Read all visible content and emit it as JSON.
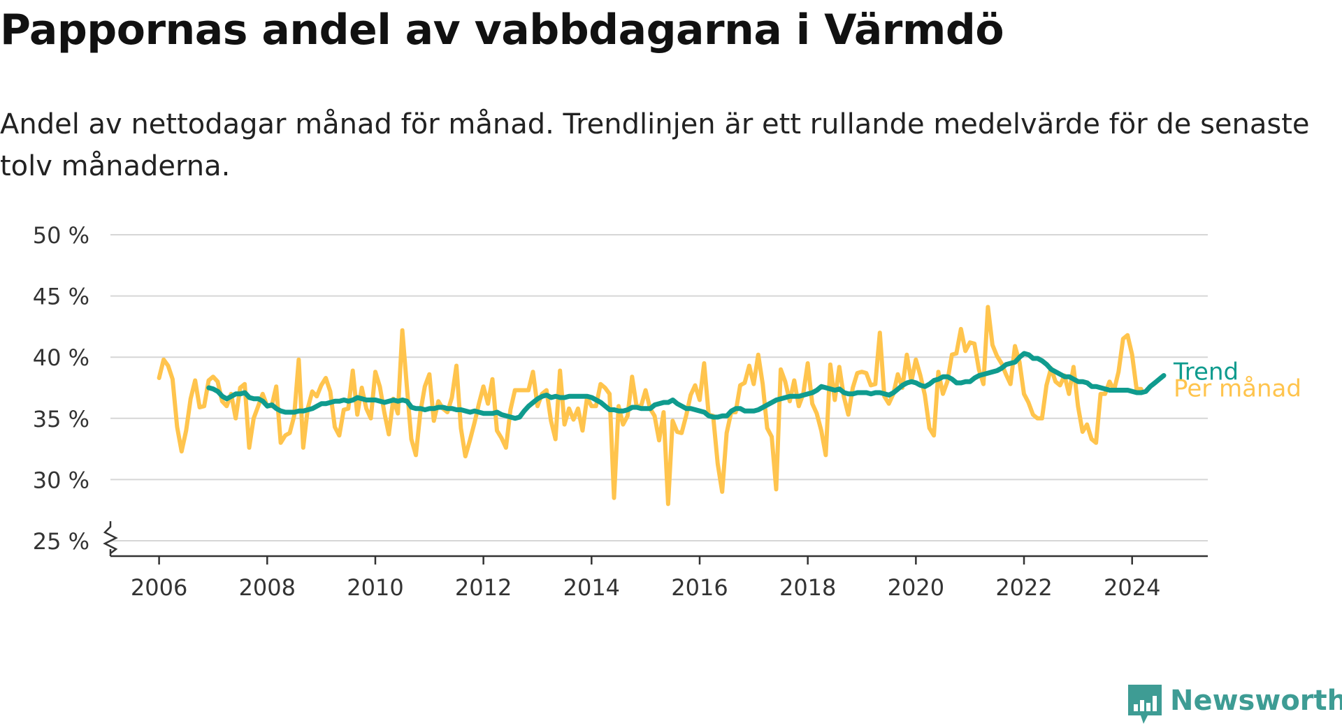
{
  "title": "Pappornas andel av vabbdagarna i Värmdö",
  "subtitle": "Andel av nettodagar månad för månad. Trendlinjen är ett rullande medelvärde för de senaste tolv månaderna.",
  "brand": {
    "name": "Newsworthy",
    "color": "#3e9c94"
  },
  "chart_data": {
    "type": "line",
    "x_axis": {
      "min": 2005.1,
      "max": 2025.4,
      "ticks": [
        2006,
        2008,
        2010,
        2012,
        2014,
        2016,
        2018,
        2020,
        2022,
        2024
      ]
    },
    "y_axis": {
      "min": 25,
      "max": 50,
      "ticks": [
        25,
        30,
        35,
        40,
        45,
        50
      ],
      "tick_labels": [
        "25 %",
        "30 %",
        "35 %",
        "40 %",
        "45 %",
        "50 %"
      ],
      "axis_break": true
    },
    "grid": true,
    "legend": "line-end labels at right",
    "series": [
      {
        "name": "Per månad",
        "color": "#ffc44d",
        "start": 2006.0,
        "step": 0.08333,
        "values": [
          38.3,
          39.8,
          39.3,
          38.2,
          34.3,
          32.3,
          34.0,
          36.6,
          38.1,
          35.9,
          36.0,
          38.1,
          38.4,
          38.0,
          36.4,
          36.0,
          37.0,
          35.0,
          37.5,
          37.8,
          32.6,
          35.0,
          36.0,
          37.0,
          36.0,
          36.0,
          37.6,
          33.0,
          33.6,
          33.8,
          35.2,
          39.8,
          32.6,
          35.8,
          37.2,
          36.8,
          37.7,
          38.3,
          37.2,
          34.3,
          33.6,
          35.7,
          35.8,
          38.9,
          35.3,
          37.5,
          35.8,
          35.0,
          38.8,
          37.6,
          35.5,
          33.7,
          36.6,
          35.4,
          42.2,
          37.6,
          33.3,
          32.0,
          35.5,
          37.6,
          38.6,
          34.8,
          36.4,
          35.8,
          35.5,
          36.7,
          39.3,
          34.2,
          31.9,
          33.2,
          34.6,
          36.2,
          37.6,
          36.2,
          38.2,
          34.0,
          33.4,
          32.6,
          35.7,
          37.3,
          37.3,
          37.3,
          37.3,
          38.8,
          36.0,
          37.0,
          37.3,
          34.8,
          33.3,
          38.9,
          34.5,
          35.8,
          34.9,
          35.8,
          34.0,
          36.7,
          36.0,
          36.0,
          37.8,
          37.5,
          37.0,
          28.5,
          36.0,
          34.5,
          35.2,
          38.4,
          36.0,
          36.0,
          37.3,
          35.8,
          35.2,
          33.2,
          35.5,
          28.0,
          34.8,
          33.9,
          33.8,
          35.2,
          36.9,
          37.7,
          36.5,
          39.5,
          35.3,
          35.2,
          31.3,
          29.0,
          33.8,
          35.5,
          35.5,
          37.7,
          37.9,
          39.3,
          37.8,
          40.2,
          37.8,
          34.2,
          33.5,
          29.2,
          39.0,
          38.0,
          36.4,
          38.1,
          36.0,
          37.0,
          39.5,
          36.2,
          35.4,
          34.0,
          32.0,
          39.4,
          36.5,
          39.2,
          36.8,
          35.3,
          37.5,
          38.7,
          38.8,
          38.7,
          37.7,
          37.8,
          42.0,
          36.8,
          36.2,
          37.0,
          38.6,
          37.5,
          40.2,
          38.0,
          39.8,
          38.5,
          36.9,
          34.2,
          33.6,
          38.8,
          37.0,
          38.0,
          40.2,
          40.3,
          42.3,
          40.5,
          41.2,
          41.1,
          39.0,
          37.8,
          44.1,
          41.0,
          40.1,
          39.5,
          38.6,
          37.8,
          40.9,
          39.6,
          37.0,
          36.3,
          35.3,
          35.0,
          35.0,
          37.7,
          39.1,
          38.0,
          37.7,
          38.5,
          37.0,
          39.2,
          36.0,
          33.9,
          34.5,
          33.3,
          33.0,
          37.0,
          37.0,
          38.0,
          37.3,
          38.8,
          41.5,
          41.8,
          40.2,
          37.4,
          37.4
        ]
      },
      {
        "name": "Trend",
        "color": "#0f9b8e",
        "start": 2006.92,
        "step": 0.08333,
        "values": [
          37.5,
          37.4,
          37.2,
          36.8,
          36.6,
          36.8,
          37.0,
          37.0,
          37.1,
          36.7,
          36.6,
          36.6,
          36.4,
          36.0,
          36.1,
          35.8,
          35.6,
          35.5,
          35.5,
          35.5,
          35.6,
          35.6,
          35.7,
          35.8,
          36.0,
          36.2,
          36.2,
          36.3,
          36.4,
          36.4,
          36.5,
          36.4,
          36.5,
          36.7,
          36.6,
          36.5,
          36.5,
          36.5,
          36.4,
          36.3,
          36.4,
          36.5,
          36.4,
          36.5,
          36.4,
          35.9,
          35.8,
          35.8,
          35.7,
          35.8,
          35.8,
          35.9,
          35.9,
          35.8,
          35.8,
          35.7,
          35.7,
          35.6,
          35.5,
          35.6,
          35.5,
          35.4,
          35.4,
          35.4,
          35.5,
          35.3,
          35.2,
          35.1,
          35.0,
          35.1,
          35.6,
          36.0,
          36.3,
          36.6,
          36.8,
          36.9,
          36.7,
          36.8,
          36.7,
          36.7,
          36.8,
          36.8,
          36.8,
          36.8,
          36.8,
          36.7,
          36.5,
          36.3,
          36.0,
          35.7,
          35.7,
          35.6,
          35.6,
          35.7,
          35.9,
          35.9,
          35.8,
          35.8,
          35.8,
          36.1,
          36.2,
          36.3,
          36.3,
          36.5,
          36.2,
          36.0,
          35.8,
          35.8,
          35.7,
          35.6,
          35.5,
          35.2,
          35.1,
          35.1,
          35.2,
          35.2,
          35.6,
          35.8,
          35.8,
          35.6,
          35.6,
          35.6,
          35.7,
          35.9,
          36.1,
          36.3,
          36.5,
          36.6,
          36.7,
          36.8,
          36.8,
          36.8,
          36.9,
          37.0,
          37.1,
          37.3,
          37.6,
          37.5,
          37.4,
          37.3,
          37.4,
          37.1,
          37.0,
          37.0,
          37.1,
          37.1,
          37.1,
          37.0,
          37.1,
          37.1,
          37.0,
          36.9,
          37.1,
          37.4,
          37.7,
          37.9,
          38.0,
          37.9,
          37.7,
          37.6,
          37.8,
          38.1,
          38.2,
          38.4,
          38.4,
          38.2,
          37.9,
          37.9,
          38.0,
          38.0,
          38.3,
          38.5,
          38.6,
          38.7,
          38.8,
          38.9,
          39.1,
          39.4,
          39.5,
          39.6,
          40.0,
          40.3,
          40.2,
          39.9,
          39.9,
          39.7,
          39.4,
          39.0,
          38.8,
          38.6,
          38.4,
          38.4,
          38.2,
          38.0,
          38.0,
          37.9,
          37.6,
          37.6,
          37.5,
          37.4,
          37.3,
          37.3,
          37.3,
          37.3,
          37.3,
          37.2,
          37.1,
          37.1,
          37.2,
          37.6,
          37.9,
          38.2,
          38.5
        ]
      }
    ]
  }
}
